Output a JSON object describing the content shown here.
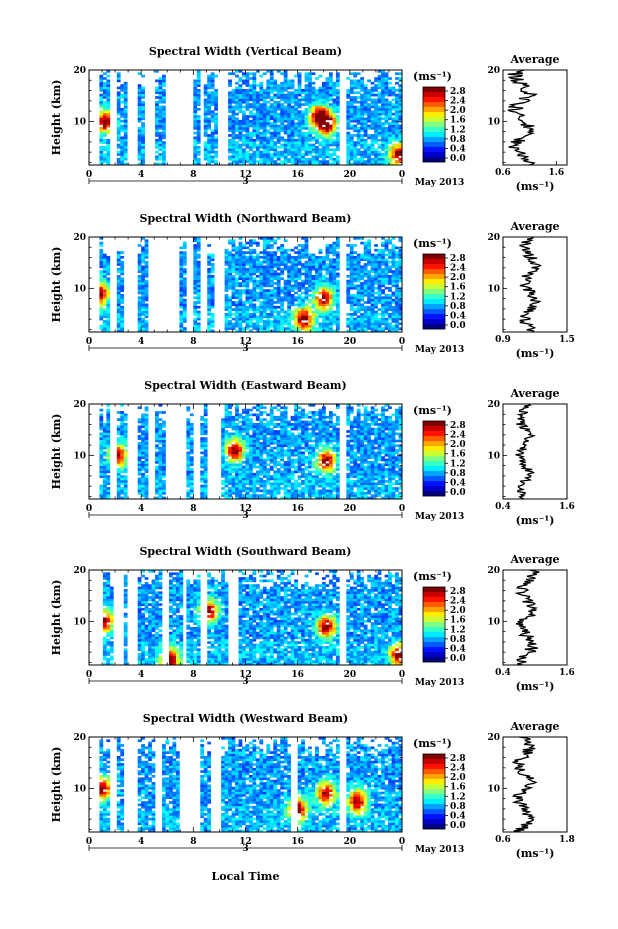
{
  "figure": {
    "xlabel": "Local Time",
    "date_label": "May 2013",
    "day_marker": "3"
  },
  "chart_data": [
    {
      "type": "heatmap",
      "title": "Spectral Width (Vertical Beam)",
      "ylabel": "Height (km)",
      "x_ticks": [
        "0",
        "4",
        "8",
        "12",
        "16",
        "20",
        "0"
      ],
      "y_ticks": [
        "20",
        "10"
      ],
      "xlim": [
        0,
        24
      ],
      "ylim": [
        1.5,
        20
      ],
      "colorbar": {
        "unit": "(ms⁻¹)",
        "ticks": [
          "2.8",
          "2.4",
          "2.0",
          "1.6",
          "1.2",
          "0.8",
          "0.4",
          "0.0"
        ],
        "range": [
          0,
          3.0
        ]
      },
      "gaps": [
        [
          0.1,
          0.4
        ],
        [
          1.6,
          2.2
        ],
        [
          2.9,
          3.7
        ],
        [
          4.3,
          5.0
        ],
        [
          6.0,
          7.9
        ],
        [
          8.5,
          8.9
        ],
        [
          9.8,
          10.6
        ],
        [
          19.3,
          19.7
        ]
      ],
      "hotspots": [
        [
          1.2,
          10
        ],
        [
          18.3,
          9.5
        ],
        [
          17.6,
          11
        ],
        [
          23.8,
          3.5
        ]
      ],
      "average": {
        "title": "Average",
        "xlabel": "(ms⁻¹)",
        "x_ticks": [
          "0.6",
          "1.6"
        ],
        "y_ticks": [
          "20",
          "10"
        ],
        "xlim": [
          0.6,
          1.8
        ],
        "ylim": [
          1.5,
          20
        ],
        "base": 0.95,
        "amp": 0.22
      }
    },
    {
      "type": "heatmap",
      "title": "Spectral Width (Northward Beam)",
      "ylabel": "Height (km)",
      "x_ticks": [
        "0",
        "4",
        "8",
        "12",
        "16",
        "20",
        "0"
      ],
      "y_ticks": [
        "20",
        "10"
      ],
      "xlim": [
        0,
        24
      ],
      "ylim": [
        1.5,
        20
      ],
      "colorbar": {
        "unit": "(ms⁻¹)",
        "ticks": [
          "2.8",
          "2.4",
          "2.0",
          "1.6",
          "1.2",
          "0.8",
          "0.4",
          "0.0"
        ],
        "range": [
          0,
          3.0
        ]
      },
      "gaps": [
        [
          0.3,
          0.6
        ],
        [
          1.6,
          2.0
        ],
        [
          2.8,
          3.6
        ],
        [
          4.4,
          6.8
        ],
        [
          7.5,
          8.0
        ],
        [
          8.6,
          9.2
        ],
        [
          9.6,
          10.4
        ],
        [
          19.2,
          19.8
        ]
      ],
      "hotspots": [
        [
          0.8,
          9
        ],
        [
          18.0,
          8
        ],
        [
          16.5,
          4
        ]
      ],
      "average": {
        "title": "Average",
        "xlabel": "(ms⁻¹)",
        "x_ticks": [
          "0.9",
          "1.5"
        ],
        "y_ticks": [
          "20",
          "10"
        ],
        "xlim": [
          0.9,
          1.5
        ],
        "ylim": [
          1.5,
          20
        ],
        "base": 1.15,
        "amp": 0.08
      }
    },
    {
      "type": "heatmap",
      "title": "Spectral Width (Eastward Beam)",
      "ylabel": "Height (km)",
      "x_ticks": [
        "0",
        "4",
        "8",
        "12",
        "16",
        "20",
        "0"
      ],
      "y_ticks": [
        "20",
        "10"
      ],
      "xlim": [
        0,
        24
      ],
      "ylim": [
        1.5,
        20
      ],
      "colorbar": {
        "unit": "(ms⁻¹)",
        "ticks": [
          "2.8",
          "2.4",
          "2.0",
          "1.6",
          "1.2",
          "0.8",
          "0.4",
          "0.0"
        ],
        "range": [
          0,
          3.0
        ]
      },
      "gaps": [
        [
          0.2,
          0.5
        ],
        [
          1.6,
          2.1
        ],
        [
          2.9,
          3.6
        ],
        [
          4.6,
          5.0
        ],
        [
          6.0,
          7.4
        ],
        [
          8.0,
          8.4
        ],
        [
          9.2,
          10.2
        ],
        [
          19.2,
          19.8
        ]
      ],
      "hotspots": [
        [
          2.2,
          10
        ],
        [
          18.2,
          9
        ],
        [
          11.2,
          11
        ]
      ],
      "average": {
        "title": "Average",
        "xlabel": "(ms⁻¹)",
        "x_ticks": [
          "0.4",
          "1.6"
        ],
        "y_ticks": [
          "20",
          "10"
        ],
        "xlim": [
          0.4,
          1.6
        ],
        "ylim": [
          1.5,
          20
        ],
        "base": 0.8,
        "amp": 0.14
      }
    },
    {
      "type": "heatmap",
      "title": "Spectral Width (Southward Beam)",
      "ylabel": "Height (km)",
      "x_ticks": [
        "0",
        "4",
        "8",
        "12",
        "16",
        "20",
        "0"
      ],
      "y_ticks": [
        "20",
        "10"
      ],
      "xlim": [
        0,
        24
      ],
      "ylim": [
        1.5,
        20
      ],
      "colorbar": {
        "unit": "(ms⁻¹)",
        "ticks": [
          "2.8",
          "2.4",
          "2.0",
          "1.6",
          "1.2",
          "0.8",
          "0.4",
          "0.0"
        ],
        "range": [
          0,
          3.0
        ]
      },
      "gaps": [
        [
          0.0,
          1.0
        ],
        [
          2.0,
          2.6
        ],
        [
          3.0,
          3.6
        ],
        [
          5.6,
          6.1
        ],
        [
          7.2,
          7.5
        ],
        [
          8.4,
          9.0
        ],
        [
          10.6,
          11.4
        ],
        [
          19.2,
          19.6
        ]
      ],
      "hotspots": [
        [
          1.1,
          10
        ],
        [
          9.2,
          12
        ],
        [
          18.2,
          9
        ],
        [
          6.2,
          2.5
        ],
        [
          23.8,
          3.5
        ]
      ],
      "average": {
        "title": "Average",
        "xlabel": "(ms⁻¹)",
        "x_ticks": [
          "0.4",
          "1.6"
        ],
        "y_ticks": [
          "20",
          "10"
        ],
        "xlim": [
          0.4,
          1.6
        ],
        "ylim": [
          1.5,
          20
        ],
        "base": 0.85,
        "amp": 0.18
      }
    },
    {
      "type": "heatmap",
      "title": "Spectral Width (Westward Beam)",
      "ylabel": "Height (km)",
      "x_ticks": [
        "0",
        "4",
        "8",
        "12",
        "16",
        "20",
        "0"
      ],
      "y_ticks": [
        "20",
        "10"
      ],
      "xlim": [
        0,
        24
      ],
      "ylim": [
        1.5,
        20
      ],
      "colorbar": {
        "unit": "(ms⁻¹)",
        "ticks": [
          "2.8",
          "2.4",
          "2.0",
          "1.6",
          "1.2",
          "0.8",
          "0.4",
          "0.0"
        ],
        "range": [
          0,
          3.0
        ]
      },
      "gaps": [
        [
          0.2,
          0.5
        ],
        [
          1.6,
          2.0
        ],
        [
          2.8,
          3.6
        ],
        [
          5.0,
          5.6
        ],
        [
          7.0,
          8.6
        ],
        [
          9.4,
          10.2
        ],
        [
          15.6,
          15.9
        ],
        [
          19.2,
          19.7
        ]
      ],
      "hotspots": [
        [
          1.0,
          10
        ],
        [
          18.2,
          9
        ],
        [
          20.6,
          7.5
        ],
        [
          16.0,
          6
        ]
      ],
      "average": {
        "title": "Average",
        "xlabel": "(ms⁻¹)",
        "x_ticks": [
          "0.6",
          "1.8"
        ],
        "y_ticks": [
          "20",
          "10"
        ],
        "xlim": [
          0.6,
          1.8
        ],
        "ylim": [
          1.5,
          20
        ],
        "base": 1.0,
        "amp": 0.18
      }
    }
  ]
}
